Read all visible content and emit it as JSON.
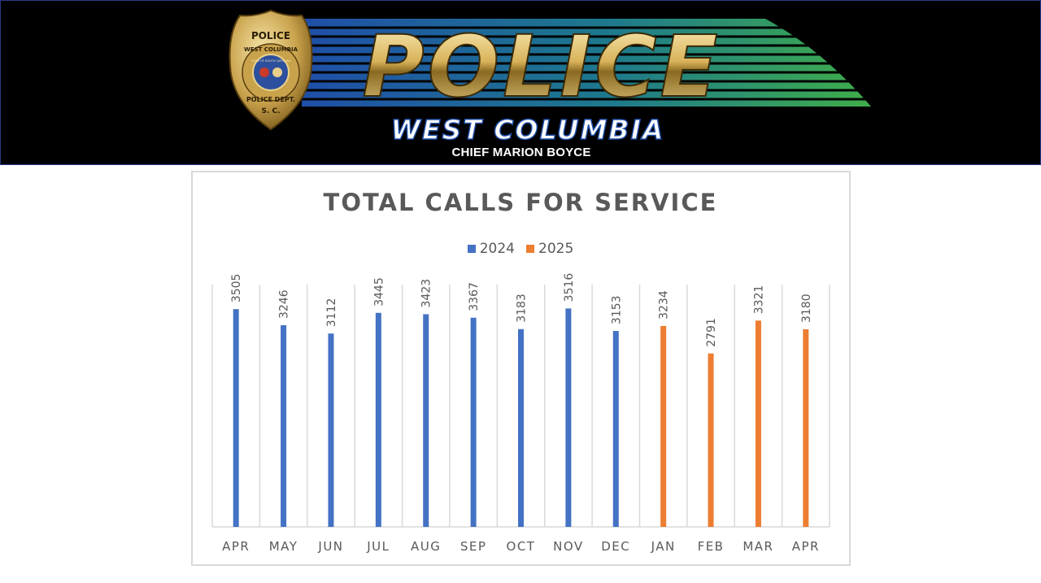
{
  "header": {
    "badge_top": "POLICE",
    "badge_ring": "WEST COLUMBIA",
    "badge_seal": "STATE OF SOUTH CAROLINA",
    "badge_dept": "POLICE DEPT.",
    "badge_state": "S. C.",
    "wordmark": "POLICE",
    "city": "WEST COLUMBIA",
    "chief": "CHIEF MARION BOYCE"
  },
  "colors": {
    "series_2024": "#4472c4",
    "series_2025": "#ed7d31",
    "axis_text": "#595959",
    "gridline": "#d9d9d9"
  },
  "chart_data": {
    "type": "bar",
    "title": "TOTAL CALLS FOR SERVICE",
    "xlabel": "",
    "ylabel": "",
    "ylim": [
      0,
      3900
    ],
    "grid": true,
    "legend_position": "top",
    "categories": [
      "APR",
      "MAY",
      "JUN",
      "JUL",
      "AUG",
      "SEP",
      "OCT",
      "NOV",
      "DEC",
      "JAN",
      "FEB",
      "MAR",
      "APR"
    ],
    "series": [
      {
        "name": "2024",
        "values": [
          3505,
          3246,
          3112,
          3445,
          3423,
          3367,
          3183,
          3516,
          3153,
          null,
          null,
          null,
          null
        ]
      },
      {
        "name": "2025",
        "values": [
          null,
          null,
          null,
          null,
          null,
          null,
          null,
          null,
          null,
          3234,
          2791,
          3321,
          3180
        ]
      }
    ]
  }
}
